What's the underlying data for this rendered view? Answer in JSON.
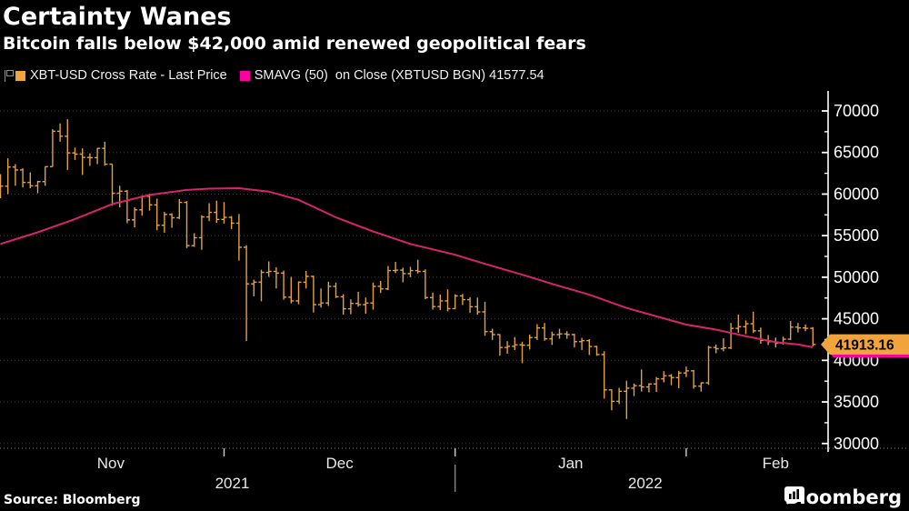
{
  "header": {
    "title": "Certainty Wanes",
    "subtitle": "Bitcoin falls below $42,000 amid renewed geopolitical fears"
  },
  "legend": {
    "items": [
      {
        "label": "XBT-USD Cross Rate - Last Price",
        "color": "#F2A43C"
      },
      {
        "label": "SMAVG (50)  on Close (XBTUSD BGN) 41577.54",
        "color": "#FF00A0"
      }
    ]
  },
  "footer": {
    "source": "Source:  Bloomberg",
    "brand": "Bloomberg"
  },
  "chart_data": {
    "type": "ohlc+line",
    "title": "Certainty Wanes",
    "subtitle": "Bitcoin falls below $42,000 amid renewed geopolitical fears",
    "colors": {
      "background": "#000000",
      "bar": "#E2A13E",
      "sma_line": "#D6246E",
      "grid": "#3D3D41",
      "baseline_dots": "#8A8A8E",
      "axis": "#FFFFFF",
      "text": "#FFFFFF",
      "muted_text": "#E8E8E8",
      "last_tag_bg": "#F2A43C",
      "smavg_tag_bg": "#FF00A0"
    },
    "y_axis": {
      "side": "right",
      "ticks": [
        30000,
        35000,
        40000,
        45000,
        50000,
        55000,
        60000,
        65000,
        70000
      ],
      "minor_ticks": [
        32500,
        37500,
        42500,
        47500,
        52500,
        57500,
        62500,
        67500
      ],
      "range": [
        29400,
        72400
      ],
      "grid": true
    },
    "x_axis": {
      "start": "2021-11-01",
      "months": [
        {
          "label": "Nov",
          "tick_day": null,
          "label_day": 14.8
        },
        {
          "label": "Dec",
          "tick_day": 30,
          "label_day": 45.5
        },
        {
          "label": "Jan",
          "tick_day": 61,
          "label_day": 76.5
        },
        {
          "label": "Feb",
          "tick_day": 92,
          "label_day": 104
        }
      ],
      "years": [
        {
          "label": "2021",
          "day": 31.1
        },
        {
          "label": "2022",
          "day": 86.5
        }
      ],
      "year_separator_day": 61
    },
    "last_price_tag": {
      "text": "41913.16",
      "value": 41913.16
    },
    "smavg_tag": {
      "text": "41577.54",
      "value": 41577.54
    },
    "series": [
      {
        "name": "XBT-USD Cross Rate - Last Price",
        "type": "ohlc_bar",
        "first_open": 60400,
        "bars": [
          [
            62400,
            59500,
            60950
          ],
          [
            64300,
            60000,
            63250
          ],
          [
            63600,
            61000,
            62900
          ],
          [
            63100,
            60800,
            61400
          ],
          [
            62600,
            60700,
            61000
          ],
          [
            61600,
            60100,
            61500
          ],
          [
            63300,
            61000,
            63300
          ],
          [
            67800,
            63300,
            67550
          ],
          [
            68500,
            66300,
            66950
          ],
          [
            69000,
            62900,
            64950
          ],
          [
            65600,
            64100,
            64800
          ],
          [
            65500,
            62300,
            64400
          ],
          [
            64900,
            63400,
            64380
          ],
          [
            65550,
            63600,
            65500
          ],
          [
            66300,
            63400,
            63600
          ],
          [
            63600,
            58600,
            60100
          ],
          [
            61000,
            58400,
            60350
          ],
          [
            60500,
            56500,
            56900
          ],
          [
            58400,
            56000,
            58100
          ],
          [
            59850,
            57400,
            59730
          ],
          [
            60050,
            58000,
            58700
          ],
          [
            59450,
            55650,
            56250
          ],
          [
            57850,
            55350,
            57550
          ],
          [
            57700,
            55950,
            57150
          ],
          [
            59400,
            57000,
            59000
          ],
          [
            59150,
            53500,
            53800
          ],
          [
            55300,
            53650,
            54750
          ],
          [
            57450,
            53300,
            57250
          ],
          [
            58900,
            56750,
            57800
          ],
          [
            59200,
            56550,
            56950
          ],
          [
            59050,
            56450,
            57200
          ],
          [
            57350,
            55800,
            56500
          ],
          [
            57600,
            52000,
            53600
          ],
          [
            53850,
            42330,
            49200
          ],
          [
            49700,
            47700,
            49400
          ],
          [
            50900,
            47100,
            50580
          ],
          [
            51900,
            50050,
            50700
          ],
          [
            51200,
            48650,
            50500
          ],
          [
            50800,
            47300,
            47600
          ],
          [
            50050,
            46850,
            47150
          ],
          [
            49500,
            46750,
            49400
          ],
          [
            50750,
            48650,
            50100
          ],
          [
            50200,
            45750,
            46700
          ],
          [
            48650,
            46350,
            46900
          ],
          [
            49450,
            46550,
            48900
          ],
          [
            49350,
            47500,
            47650
          ],
          [
            47950,
            45500,
            46200
          ],
          [
            47350,
            45550,
            46850
          ],
          [
            48250,
            46450,
            46700
          ],
          [
            47550,
            45600,
            46900
          ],
          [
            49350,
            46100,
            48900
          ],
          [
            49550,
            48100,
            48600
          ],
          [
            51350,
            48450,
            50800
          ],
          [
            51850,
            50500,
            50850
          ],
          [
            51150,
            49400,
            50430
          ],
          [
            51250,
            50000,
            50800
          ],
          [
            52100,
            50450,
            50700
          ],
          [
            50950,
            47350,
            47550
          ],
          [
            48150,
            46100,
            46470
          ],
          [
            47900,
            46050,
            47150
          ],
          [
            48550,
            45900,
            46220
          ],
          [
            47950,
            46150,
            47750
          ],
          [
            47990,
            46650,
            47300
          ],
          [
            47600,
            45700,
            46450
          ],
          [
            47550,
            45500,
            45830
          ],
          [
            47050,
            42950,
            43450
          ],
          [
            43800,
            42450,
            43100
          ],
          [
            43150,
            40550,
            41550
          ],
          [
            42300,
            40800,
            41690
          ],
          [
            42800,
            41250,
            41870
          ],
          [
            42250,
            39650,
            41820
          ],
          [
            43100,
            41300,
            42740
          ],
          [
            44350,
            42450,
            43900
          ],
          [
            44500,
            42350,
            42590
          ],
          [
            43450,
            41850,
            43100
          ],
          [
            43800,
            42600,
            43180
          ],
          [
            43500,
            42600,
            43100
          ],
          [
            43200,
            41550,
            42250
          ],
          [
            42700,
            41250,
            42370
          ],
          [
            42550,
            40650,
            41660
          ],
          [
            41750,
            40550,
            40700
          ],
          [
            41100,
            35400,
            36450
          ],
          [
            36500,
            34000,
            35070
          ],
          [
            36700,
            34750,
            36280
          ],
          [
            37550,
            32950,
            36650
          ],
          [
            37200,
            35700,
            36950
          ],
          [
            38900,
            36250,
            36800
          ],
          [
            37250,
            36150,
            37160
          ],
          [
            38000,
            36200,
            37780
          ],
          [
            38700,
            37350,
            38150
          ],
          [
            38350,
            37000,
            37920
          ],
          [
            38750,
            36650,
            38480
          ],
          [
            39250,
            38000,
            38740
          ],
          [
            38850,
            36600,
            36900
          ],
          [
            37350,
            36250,
            37300
          ],
          [
            41750,
            37050,
            41550
          ],
          [
            41900,
            40850,
            41400
          ],
          [
            42650,
            41100,
            41500
          ],
          [
            44500,
            41350,
            43850
          ],
          [
            45500,
            43300,
            44050
          ],
          [
            44800,
            43150,
            44400
          ],
          [
            45855,
            43300,
            43550
          ],
          [
            43950,
            42000,
            42400
          ],
          [
            43050,
            41850,
            42250
          ],
          [
            42750,
            41550,
            42070
          ],
          [
            42850,
            41900,
            42550
          ],
          [
            44750,
            42450,
            44000
          ],
          [
            44500,
            43350,
            43900
          ],
          [
            44300,
            43500,
            43850
          ],
          [
            44000,
            41700,
            41913.16
          ]
        ]
      },
      {
        "name": "SMAVG (50) on Close (XBTUSD BGN)",
        "type": "line",
        "last_value": 41577.54,
        "points": [
          [
            0,
            54000
          ],
          [
            5,
            55400
          ],
          [
            10,
            57000
          ],
          [
            15,
            58800
          ],
          [
            20,
            59900
          ],
          [
            25,
            60500
          ],
          [
            28,
            60650
          ],
          [
            32,
            60700
          ],
          [
            36,
            60300
          ],
          [
            40,
            59300
          ],
          [
            45,
            57200
          ],
          [
            50,
            55500
          ],
          [
            55,
            54000
          ],
          [
            61,
            52700
          ],
          [
            65,
            51600
          ],
          [
            70,
            50300
          ],
          [
            74,
            49200
          ],
          [
            79,
            47900
          ],
          [
            84,
            46300
          ],
          [
            88,
            45300
          ],
          [
            92,
            44300
          ],
          [
            96,
            43700
          ],
          [
            100,
            42900
          ],
          [
            104,
            42200
          ],
          [
            107,
            41900
          ],
          [
            109,
            41577.54
          ]
        ]
      }
    ]
  }
}
